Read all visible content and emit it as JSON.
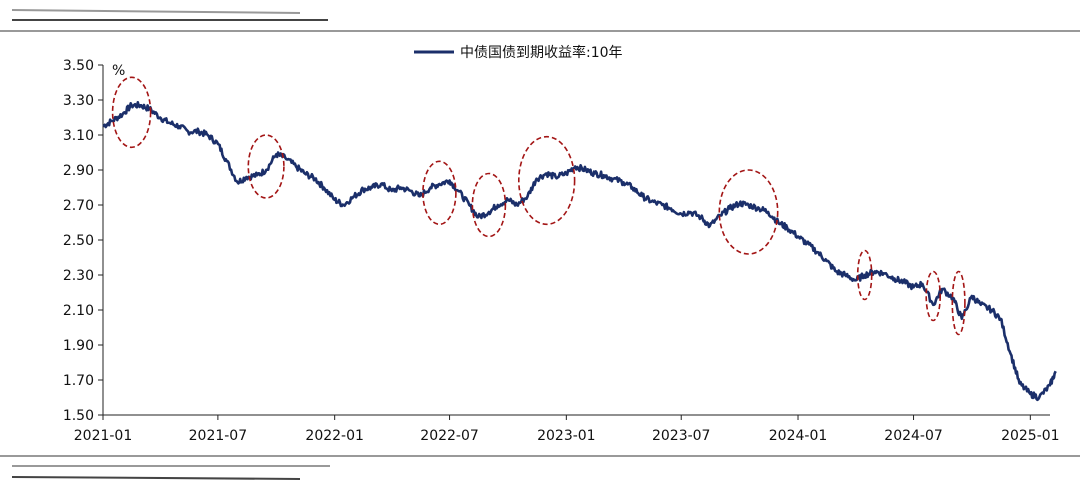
{
  "colors": {
    "series": "#1b2f6a",
    "highlight": "#a31515",
    "axis": "#222222",
    "rule": "#333333"
  },
  "chart_data": {
    "type": "line",
    "title": "",
    "xlabel": "",
    "ylabel": "",
    "unit": "%",
    "legend": {
      "position": "top-center"
    },
    "grid": false,
    "ylim": [
      1.5,
      3.5
    ],
    "yticks": [
      "3.50",
      "3.30",
      "3.10",
      "2.90",
      "2.70",
      "2.50",
      "2.30",
      "2.10",
      "1.90",
      "1.70",
      "1.50"
    ],
    "xticks": [
      "2021-01",
      "2021-07",
      "2022-01",
      "2022-07",
      "2023-01",
      "2023-07",
      "2024-01",
      "2024-07",
      "2025-01"
    ],
    "xlim": [
      "2021-01",
      "2025-02"
    ],
    "series": [
      {
        "name": "中债国债到期收益率:10年",
        "points": [
          [
            "2021-01",
            3.15
          ],
          [
            "2021-01-15",
            3.18
          ],
          [
            "2021-02",
            3.22
          ],
          [
            "2021-02-15",
            3.27
          ],
          [
            "2021-03",
            3.27
          ],
          [
            "2021-03-15",
            3.25
          ],
          [
            "2021-04",
            3.2
          ],
          [
            "2021-04-15",
            3.17
          ],
          [
            "2021-05",
            3.15
          ],
          [
            "2021-05-15",
            3.12
          ],
          [
            "2021-06",
            3.12
          ],
          [
            "2021-06-15",
            3.1
          ],
          [
            "2021-07",
            3.05
          ],
          [
            "2021-07-15",
            2.95
          ],
          [
            "2021-08",
            2.83
          ],
          [
            "2021-08-15",
            2.86
          ],
          [
            "2021-09",
            2.87
          ],
          [
            "2021-09-15",
            2.9
          ],
          [
            "2021-10",
            2.99
          ],
          [
            "2021-10-15",
            2.97
          ],
          [
            "2021-11",
            2.92
          ],
          [
            "2021-11-15",
            2.88
          ],
          [
            "2021-12",
            2.85
          ],
          [
            "2021-12-15",
            2.8
          ],
          [
            "2022-01",
            2.73
          ],
          [
            "2022-01-15",
            2.7
          ],
          [
            "2022-02",
            2.75
          ],
          [
            "2022-02-15",
            2.79
          ],
          [
            "2022-03",
            2.8
          ],
          [
            "2022-03-15",
            2.82
          ],
          [
            "2022-04",
            2.78
          ],
          [
            "2022-04-15",
            2.8
          ],
          [
            "2022-05",
            2.78
          ],
          [
            "2022-05-15",
            2.75
          ],
          [
            "2022-06",
            2.8
          ],
          [
            "2022-06-15",
            2.82
          ],
          [
            "2022-07",
            2.84
          ],
          [
            "2022-07-15",
            2.78
          ],
          [
            "2022-08",
            2.7
          ],
          [
            "2022-08-15",
            2.63
          ],
          [
            "2022-09",
            2.66
          ],
          [
            "2022-09-15",
            2.7
          ],
          [
            "2022-10",
            2.73
          ],
          [
            "2022-10-15",
            2.7
          ],
          [
            "2022-11",
            2.75
          ],
          [
            "2022-11-15",
            2.85
          ],
          [
            "2022-12",
            2.88
          ],
          [
            "2022-12-15",
            2.86
          ],
          [
            "2023-01",
            2.88
          ],
          [
            "2023-01-15",
            2.92
          ],
          [
            "2023-02",
            2.9
          ],
          [
            "2023-02-15",
            2.88
          ],
          [
            "2023-03",
            2.87
          ],
          [
            "2023-03-15",
            2.85
          ],
          [
            "2023-04",
            2.83
          ],
          [
            "2023-04-15",
            2.8
          ],
          [
            "2023-05",
            2.75
          ],
          [
            "2023-05-15",
            2.72
          ],
          [
            "2023-06",
            2.7
          ],
          [
            "2023-06-15",
            2.68
          ],
          [
            "2023-07",
            2.65
          ],
          [
            "2023-07-15",
            2.66
          ],
          [
            "2023-08",
            2.63
          ],
          [
            "2023-08-15",
            2.58
          ],
          [
            "2023-09",
            2.64
          ],
          [
            "2023-09-15",
            2.68
          ],
          [
            "2023-10",
            2.71
          ],
          [
            "2023-10-15",
            2.7
          ],
          [
            "2023-11",
            2.68
          ],
          [
            "2023-11-15",
            2.66
          ],
          [
            "2023-12",
            2.6
          ],
          [
            "2023-12-15",
            2.57
          ],
          [
            "2024-01",
            2.52
          ],
          [
            "2024-01-15",
            2.48
          ],
          [
            "2024-02",
            2.43
          ],
          [
            "2024-02-15",
            2.38
          ],
          [
            "2024-03",
            2.32
          ],
          [
            "2024-03-15",
            2.3
          ],
          [
            "2024-04",
            2.27
          ],
          [
            "2024-04-15",
            2.3
          ],
          [
            "2024-05",
            2.32
          ],
          [
            "2024-05-15",
            2.31
          ],
          [
            "2024-06",
            2.28
          ],
          [
            "2024-06-15",
            2.26
          ],
          [
            "2024-07",
            2.23
          ],
          [
            "2024-07-15",
            2.25
          ],
          [
            "2024-08",
            2.13
          ],
          [
            "2024-08-15",
            2.22
          ],
          [
            "2024-09",
            2.17
          ],
          [
            "2024-09-15",
            2.05
          ],
          [
            "2024-10",
            2.18
          ],
          [
            "2024-10-15",
            2.13
          ],
          [
            "2024-11",
            2.1
          ],
          [
            "2024-11-15",
            2.05
          ],
          [
            "2024-12",
            1.85
          ],
          [
            "2024-12-15",
            1.68
          ],
          [
            "2025-01",
            1.62
          ],
          [
            "2025-01-15",
            1.6
          ],
          [
            "2025-02",
            1.67
          ],
          [
            "2025-02-10",
            1.75
          ]
        ]
      }
    ],
    "annotations": [
      {
        "type": "ellipse",
        "x": "2021-02-15",
        "y": 3.23,
        "rx_days": 30,
        "ry_value": 0.2
      },
      {
        "type": "ellipse",
        "x": "2021-09-15",
        "y": 2.92,
        "rx_days": 28,
        "ry_value": 0.18
      },
      {
        "type": "ellipse",
        "x": "2022-06-15",
        "y": 2.77,
        "rx_days": 26,
        "ry_value": 0.18
      },
      {
        "type": "ellipse",
        "x": "2022-09-01",
        "y": 2.7,
        "rx_days": 26,
        "ry_value": 0.18
      },
      {
        "type": "ellipse",
        "x": "2022-12-01",
        "y": 2.84,
        "rx_days": 44,
        "ry_value": 0.25
      },
      {
        "type": "ellipse",
        "x": "2023-10-15",
        "y": 2.66,
        "rx_days": 46,
        "ry_value": 0.24
      },
      {
        "type": "ellipse",
        "x": "2024-04-15",
        "y": 2.3,
        "rx_days": 11,
        "ry_value": 0.14
      },
      {
        "type": "ellipse",
        "x": "2024-08-01",
        "y": 2.18,
        "rx_days": 11,
        "ry_value": 0.14
      },
      {
        "type": "ellipse",
        "x": "2024-09-10",
        "y": 2.14,
        "rx_days": 10,
        "ry_value": 0.18
      }
    ]
  }
}
